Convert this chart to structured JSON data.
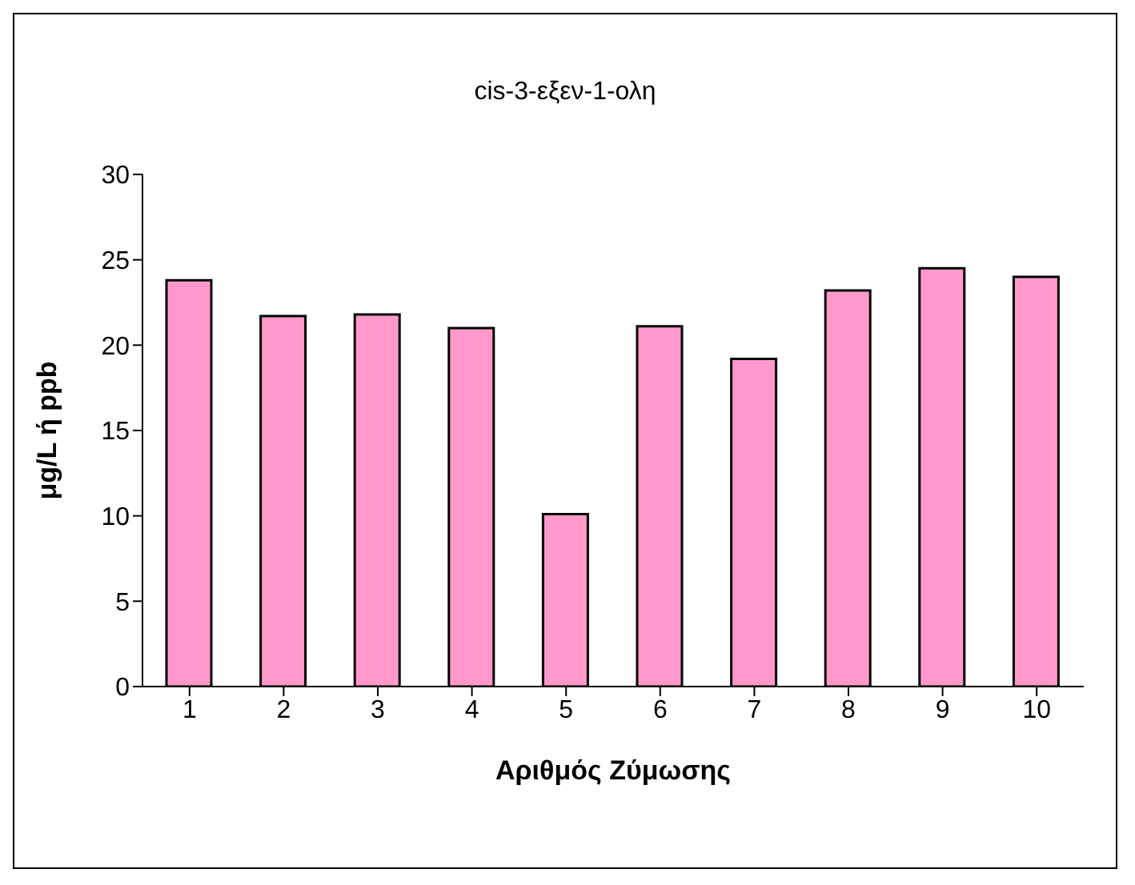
{
  "chart_data": {
    "type": "bar",
    "title": "cis-3-εξεν-1-ολη",
    "xlabel": "Αριθμός Ζύμωσης",
    "ylabel": "μg/L ή ppb",
    "categories": [
      "1",
      "2",
      "3",
      "4",
      "5",
      "6",
      "7",
      "8",
      "9",
      "10"
    ],
    "values": [
      23.8,
      21.7,
      21.8,
      21.0,
      10.1,
      21.1,
      19.2,
      23.2,
      24.5,
      24.0
    ],
    "color": "#ff99cc",
    "ylim": [
      0,
      30
    ],
    "yticks": [
      0,
      5,
      10,
      15,
      20,
      25,
      30
    ],
    "grid": false
  }
}
